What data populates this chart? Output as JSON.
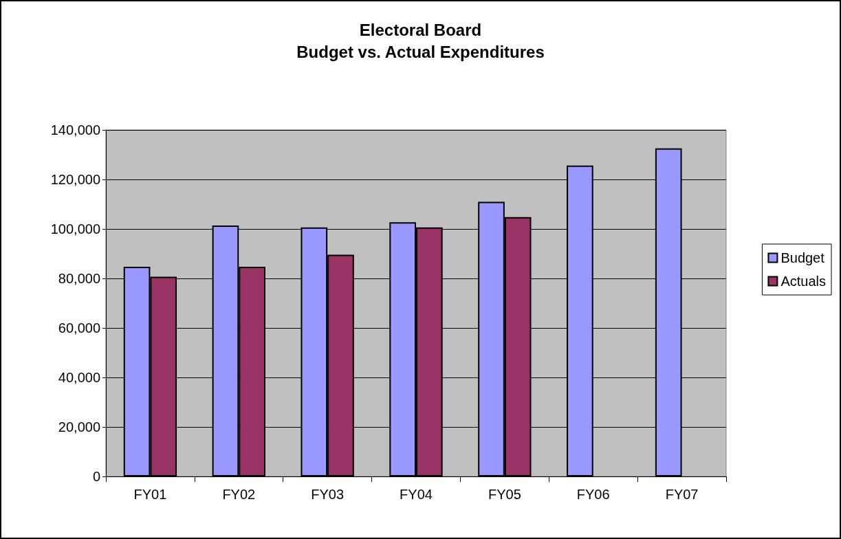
{
  "chart_data": {
    "type": "bar",
    "title": "Electoral Board",
    "subtitle": "Budget vs. Actual Expenditures",
    "categories": [
      "FY01",
      "FY02",
      "FY03",
      "FY04",
      "FY05",
      "FY06",
      "FY07"
    ],
    "series": [
      {
        "name": "Budget",
        "color": "#9999ff",
        "values": [
          84700,
          101400,
          100600,
          102700,
          111000,
          125600,
          132600
        ]
      },
      {
        "name": "Actuals",
        "color": "#993366",
        "values": [
          80700,
          84700,
          89600,
          100600,
          104800,
          null,
          null
        ]
      }
    ],
    "ylim": [
      0,
      140000
    ],
    "yticks": [
      0,
      {
        "value": 20000,
        "label": "20,000"
      },
      {
        "value": 40000,
        "label": "40,000"
      },
      {
        "value": 60000,
        "label": "60,000"
      },
      {
        "value": 80000,
        "label": "80,000"
      },
      {
        "value": 100000,
        "label": "100,000"
      },
      {
        "value": 120000,
        "label": "120,000"
      },
      {
        "value": 140000,
        "label": "140,000"
      }
    ],
    "grid": "y",
    "legend": "right"
  }
}
